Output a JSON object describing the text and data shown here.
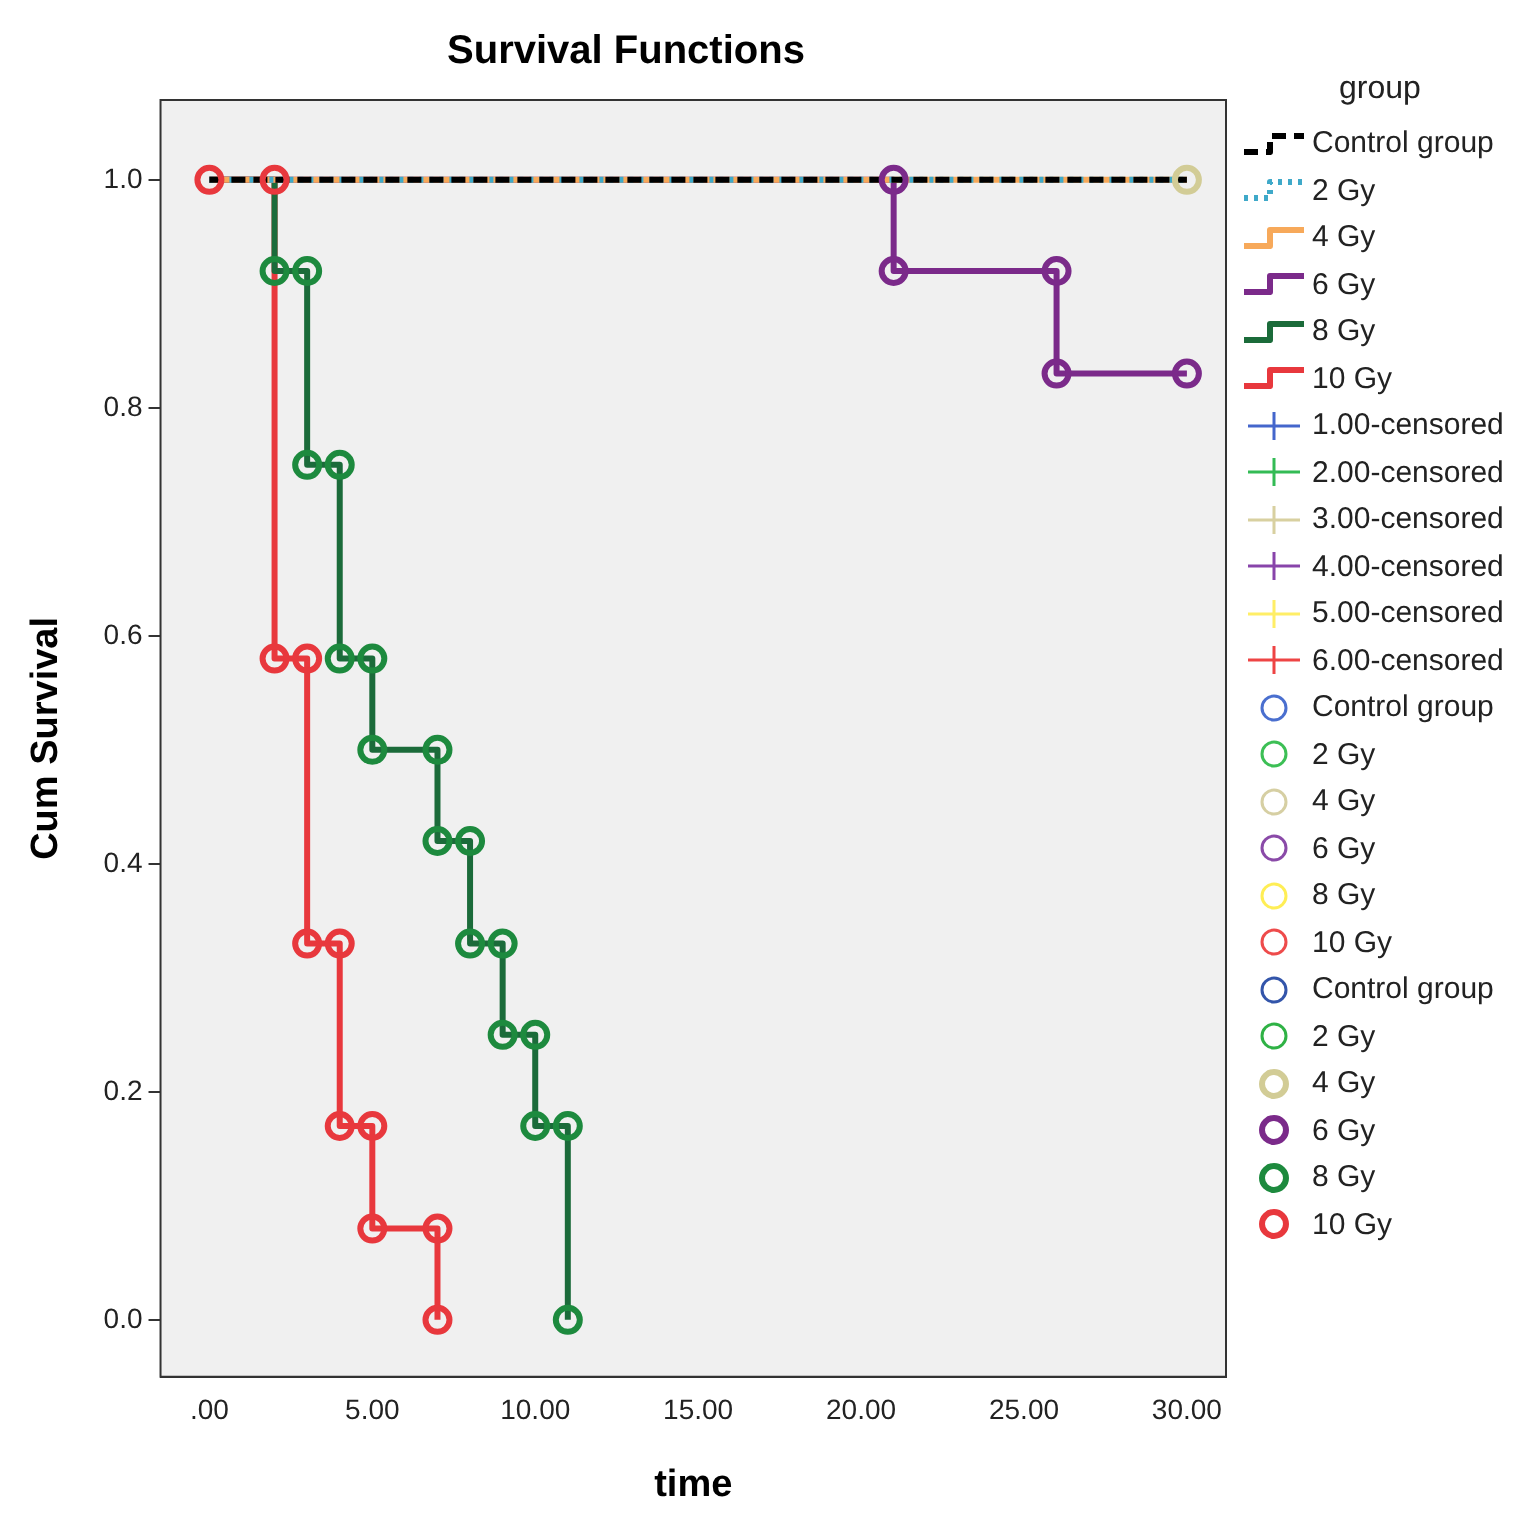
{
  "chart_data": {
    "type": "step",
    "title": "Survival Functions",
    "xlabel": "time",
    "ylabel": "Cum Survival",
    "legend_title": "group",
    "legend": "right",
    "grid": false,
    "xlim": [
      -1.5,
      31.2
    ],
    "ylim": [
      -0.05,
      1.07
    ],
    "xticks": [
      {
        "value": 0,
        "label": ".00"
      },
      {
        "value": 5,
        "label": "5.00"
      },
      {
        "value": 10,
        "label": "10.00"
      },
      {
        "value": 15,
        "label": "15.00"
      },
      {
        "value": 20,
        "label": "20.00"
      },
      {
        "value": 25,
        "label": "25.00"
      },
      {
        "value": 30,
        "label": "30.00"
      }
    ],
    "yticks": [
      {
        "value": 0,
        "label": "0.0"
      },
      {
        "value": 0.2,
        "label": "0.2"
      },
      {
        "value": 0.4,
        "label": "0.4"
      },
      {
        "value": 0.6,
        "label": "0.6"
      },
      {
        "value": 0.8,
        "label": "0.8"
      },
      {
        "value": 1,
        "label": "1.0"
      }
    ],
    "series": [
      {
        "name": "Control group",
        "color": "#000000",
        "line_style": "dashed",
        "x": [
          0,
          30
        ],
        "values": [
          1,
          1
        ]
      },
      {
        "name": "2 Gy",
        "color": "#3fa9c9",
        "line_style": "dotted",
        "x": [
          0,
          30
        ],
        "values": [
          1,
          1
        ]
      },
      {
        "name": "4 Gy",
        "color": "#f7a95a",
        "line_style": "solid",
        "x": [
          0,
          30
        ],
        "values": [
          1,
          1
        ]
      },
      {
        "name": "6 Gy",
        "color": "#7b2a8a",
        "line_style": "solid",
        "x": [
          0,
          21,
          26,
          30
        ],
        "values": [
          1,
          0.92,
          0.83,
          0.83
        ]
      },
      {
        "name": "8 Gy",
        "color": "#1b6b3a",
        "line_style": "solid",
        "x": [
          0,
          2,
          3,
          4,
          5,
          7,
          8,
          9,
          10,
          11
        ],
        "values": [
          1,
          0.92,
          0.75,
          0.58,
          0.5,
          0.42,
          0.33,
          0.25,
          0.17,
          0
        ]
      },
      {
        "name": "10 Gy",
        "color": "#e8383d",
        "line_style": "solid",
        "x": [
          0,
          2,
          3,
          4,
          5,
          7
        ],
        "values": [
          1,
          0.58,
          0.33,
          0.17,
          0.08,
          0
        ]
      },
      {
        "name": "1.00-censored",
        "type": "scatter",
        "marker": "cross",
        "color": "#4466cc"
      },
      {
        "name": "2.00-censored",
        "type": "scatter",
        "marker": "cross",
        "color": "#33bb55"
      },
      {
        "name": "3.00-censored",
        "type": "scatter",
        "marker": "cross",
        "color": "#d8d0a0"
      },
      {
        "name": "4.00-censored",
        "type": "scatter",
        "marker": "cross",
        "color": "#8844aa"
      },
      {
        "name": "5.00-censored",
        "type": "scatter",
        "marker": "cross",
        "color": "#ffee66"
      },
      {
        "name": "6.00-censored",
        "type": "scatter",
        "marker": "cross",
        "color": "#ee4444"
      },
      {
        "name": "Control group",
        "type": "scatter",
        "marker": "circle",
        "color": "#4a6fcf"
      },
      {
        "name": "2 Gy",
        "type": "scatter",
        "marker": "circle",
        "color": "#3cbf55"
      },
      {
        "name": "4 Gy",
        "type": "scatter",
        "marker": "circle",
        "color": "#d6cfa3"
      },
      {
        "name": "6 Gy",
        "type": "scatter",
        "marker": "circle",
        "color": "#8a4aa8"
      },
      {
        "name": "8 Gy",
        "type": "scatter",
        "marker": "circle",
        "color": "#ffee55"
      },
      {
        "name": "10 Gy",
        "type": "scatter",
        "marker": "circle",
        "color": "#ee4b4b"
      },
      {
        "name": "Control group",
        "type": "scatter",
        "marker": "circle",
        "color": "#3355aa"
      },
      {
        "name": "2 Gy",
        "type": "scatter",
        "marker": "circle",
        "color": "#2fb245"
      },
      {
        "name": "4 Gy",
        "type": "scatter",
        "marker": "circle",
        "color": "#d2cc96",
        "x": [
          30
        ],
        "values": [
          1
        ]
      },
      {
        "name": "6 Gy",
        "type": "scatter",
        "marker": "circle",
        "color": "#7b2a8a",
        "x": [
          21,
          21,
          26,
          26,
          30
        ],
        "values": [
          1,
          0.92,
          0.92,
          0.83,
          0.83
        ]
      },
      {
        "name": "8 Gy",
        "type": "scatter",
        "marker": "circle",
        "color": "#1d8a3e",
        "x": [
          2,
          3,
          3,
          4,
          4,
          5,
          5,
          7,
          7,
          8,
          8,
          9,
          9,
          10,
          10,
          11,
          11
        ],
        "values": [
          0.92,
          0.92,
          0.75,
          0.75,
          0.58,
          0.58,
          0.5,
          0.5,
          0.42,
          0.42,
          0.33,
          0.33,
          0.25,
          0.25,
          0.17,
          0.17,
          0
        ]
      },
      {
        "name": "10 Gy",
        "type": "scatter",
        "marker": "circle",
        "color": "#e8383d",
        "x": [
          0,
          2,
          2,
          3,
          3,
          4,
          4,
          5,
          5,
          7,
          7
        ],
        "values": [
          1,
          1,
          0.58,
          0.58,
          0.33,
          0.33,
          0.17,
          0.17,
          0.08,
          0.08,
          0
        ]
      }
    ]
  }
}
